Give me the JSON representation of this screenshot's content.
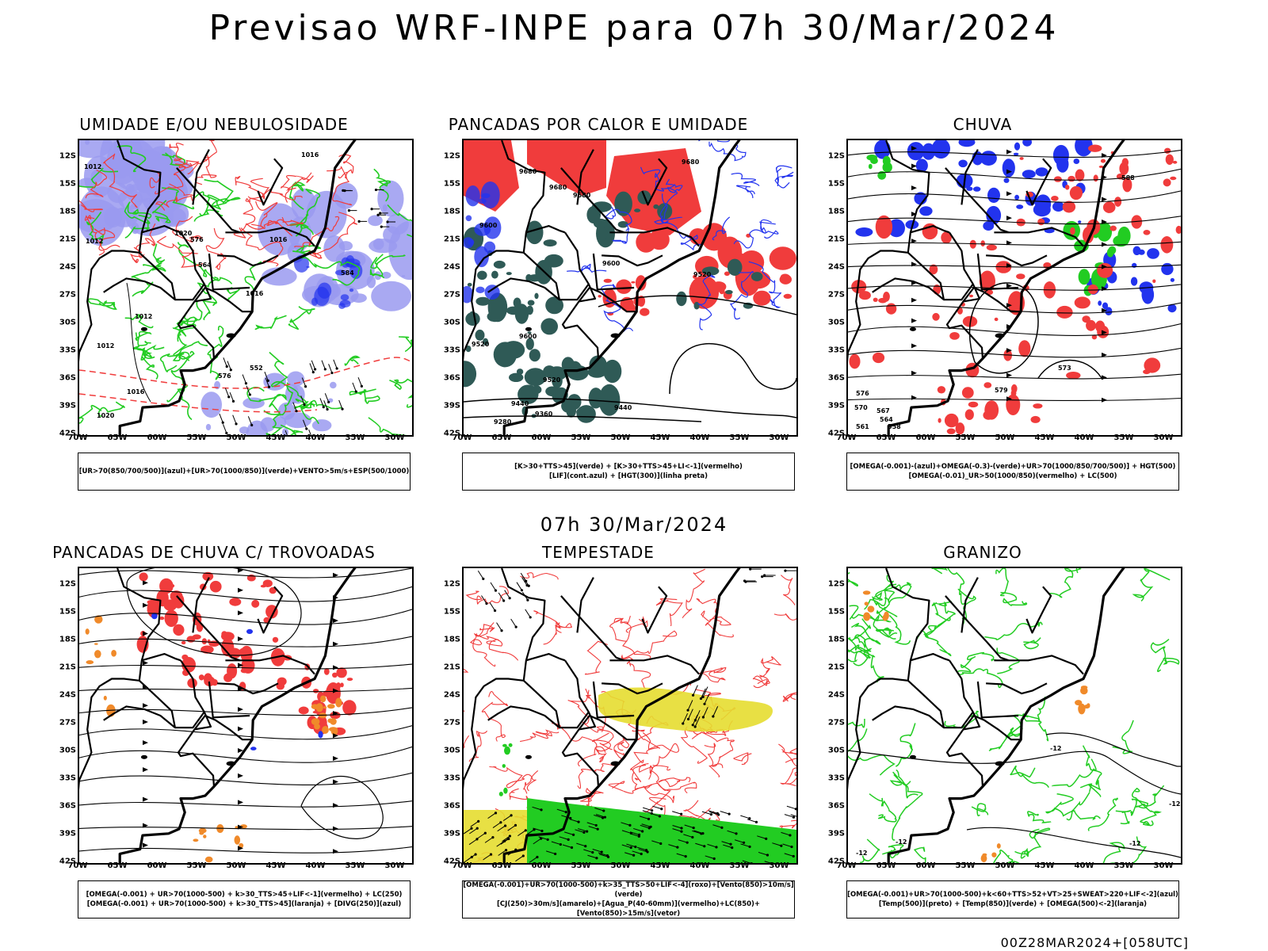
{
  "title": "Previsao WRF-INPE  para 07h 30/Mar/2024",
  "subtitle": "07h 30/Mar/2024",
  "footer": "00Z28MAR2024+[058UTC]",
  "axes": {
    "lat_labels": [
      "12S",
      "15S",
      "18S",
      "21S",
      "24S",
      "27S",
      "30S",
      "33S",
      "36S",
      "39S",
      "42S"
    ],
    "lon_labels": [
      "70W",
      "65W",
      "60W",
      "55W",
      "50W",
      "45W",
      "40W",
      "35W",
      "30W"
    ]
  },
  "colors": {
    "red": "#f03c3c",
    "green": "#22cc22",
    "blue": "#2233ee",
    "lavender": "#9a9af0",
    "darkteal": "#2f5a56",
    "yellow": "#e6dd30",
    "orange": "#f08a2a"
  },
  "panels": [
    {
      "title": "UMIDADE E/OU NEBULOSIDADE",
      "legend": [
        "[UR>70(850/700/500)](azul)+[UR>70(1000/850)](verde)+VENTO>5m/s+ESP(500/1000)"
      ],
      "contour_labels": [
        "1012",
        "1012",
        "1016",
        "1016",
        "1020",
        "1016",
        "1012",
        "1012",
        "1016",
        "1020",
        "576",
        "576",
        "564",
        "552",
        "584"
      ]
    },
    {
      "title": "PANCADAS POR CALOR E UMIDADE",
      "legend": [
        "[K>30+TTS>45](verde) + [K>30+TTS>45+LI<-1](vermelho)",
        "[LIF](cont.azul) + [HGT(300)](linha preta)"
      ],
      "contour_labels": [
        "9680",
        "9680",
        "9680",
        "9680",
        "9600",
        "9600",
        "9600",
        "9520",
        "9520",
        "9440",
        "9440",
        "9360",
        "9280",
        "9520"
      ]
    },
    {
      "title": "CHUVA",
      "legend": [
        "[OMEGA(-0.001)-(azul)+OMEGA(-0.3)-(verde)+UR>70(1000/850/700/500)] + HGT(500)",
        "[OMEGA(-0.01)_UR>50(1000/850)(vermelho) + LC(500)"
      ],
      "contour_labels": [
        "588",
        "573",
        "579",
        "576",
        "567",
        "570",
        "564",
        "561",
        "558"
      ]
    },
    {
      "title": "PANCADAS DE CHUVA C/ TROVOADAS",
      "legend": [
        "[OMEGA(-0.001) + UR>70(1000-500) + k>30_TTS>45+LIF<-1](vermelho) + LC(250)",
        "[OMEGA(-0.001) + UR>70(1000-500) + k>30_TTS>45](laranja) + [DIVG(250)](azul)"
      ],
      "contour_labels": []
    },
    {
      "title": "TEMPESTADE",
      "legend": [
        "[OMEGA(-0.001)+UR>70(1000-500)+k>35_TTS>50+LIF<-4](roxo)+[Vento(850)>10m/s](verde)",
        "[CJ(250)>30m/s](amarelo)+[Agua_P(40-60mm)](vermelho)+LC(850)+[Vento(850)>15m/s](vetor)"
      ],
      "contour_labels": []
    },
    {
      "title": "GRANIZO",
      "legend": [
        "[OMEGA(-0.001)+UR>70(1000-500)+k<60+TTS>52+VT>25+SWEAT>220+LIF<-2](azul)",
        "[Temp(500)](preto) + [Temp(850)](verde) + [OMEGA(500)<-2](laranja)"
      ],
      "contour_labels": [
        "-12",
        "-12",
        "-12",
        "-12",
        "-12"
      ]
    }
  ]
}
